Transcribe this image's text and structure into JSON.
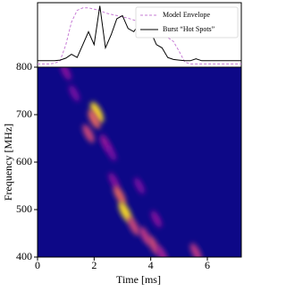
{
  "chart_data": [
    {
      "type": "line",
      "x": [
        0,
        0.2,
        0.4,
        0.6,
        0.8,
        1.0,
        1.2,
        1.4,
        1.6,
        1.8,
        2.0,
        2.2,
        2.4,
        2.6,
        2.8,
        3.0,
        3.2,
        3.4,
        3.6,
        3.8,
        4.0,
        4.2,
        4.4,
        4.6,
        4.8,
        5.0,
        5.2,
        5.4,
        5.6,
        5.8,
        6.0,
        6.2,
        6.4,
        6.6,
        6.8,
        7.0,
        7.2
      ],
      "series": [
        {
          "name": "Model Envelope",
          "color": "#c77dd6",
          "dash": true,
          "values": [
            0.05,
            0.05,
            0.05,
            0.06,
            0.1,
            0.35,
            0.7,
            0.88,
            0.92,
            0.92,
            0.9,
            0.88,
            0.84,
            0.82,
            0.8,
            0.78,
            0.76,
            0.73,
            0.7,
            0.65,
            0.6,
            0.56,
            0.5,
            0.46,
            0.4,
            0.25,
            0.08,
            0.05,
            0.05,
            0.05,
            0.05,
            0.05,
            0.05,
            0.05,
            0.05,
            0.05,
            0.05
          ]
        },
        {
          "name": "Burst “Hot Spots”",
          "color": "#000000",
          "dash": false,
          "values": [
            0.1,
            0.1,
            0.1,
            0.1,
            0.11,
            0.14,
            0.2,
            0.15,
            0.35,
            0.55,
            0.35,
            0.95,
            0.3,
            0.5,
            0.75,
            0.8,
            0.6,
            0.55,
            0.68,
            0.5,
            0.55,
            0.35,
            0.3,
            0.15,
            0.12,
            0.11,
            0.1,
            0.1,
            0.13,
            0.1,
            0.1,
            0.1,
            0.1,
            0.1,
            0.1,
            0.1,
            0.1
          ]
        }
      ],
      "xlim": [
        0,
        7.2
      ],
      "ylim": [
        0,
        1
      ],
      "legend": "upper right"
    },
    {
      "type": "heatmap",
      "xlabel": "Time [ms]",
      "ylabel": "Frequency [MHz]",
      "xlim": [
        0,
        7.2
      ],
      "ylim": [
        400,
        800
      ],
      "xticks": [
        0,
        2,
        4,
        6
      ],
      "yticks": [
        400,
        500,
        600,
        700,
        800
      ],
      "background": "#0d0887",
      "heatmap": {
        "x": [
          1.0,
          1.3,
          1.8,
          2.1,
          2.0,
          2.4,
          2.7,
          2.9,
          3.1,
          3.4,
          3.8,
          4.1,
          4.4,
          5.6,
          3.6,
          4.2,
          2.6
        ],
        "y": [
          790,
          745,
          660,
          705,
          690,
          640,
          560,
          530,
          495,
          465,
          445,
          425,
          405,
          410,
          550,
          480,
          620
        ],
        "values": [
          0.35,
          0.3,
          0.6,
          0.95,
          0.7,
          0.4,
          0.35,
          0.7,
          0.95,
          0.6,
          0.55,
          0.6,
          0.45,
          0.55,
          0.3,
          0.35,
          0.3
        ]
      }
    }
  ]
}
